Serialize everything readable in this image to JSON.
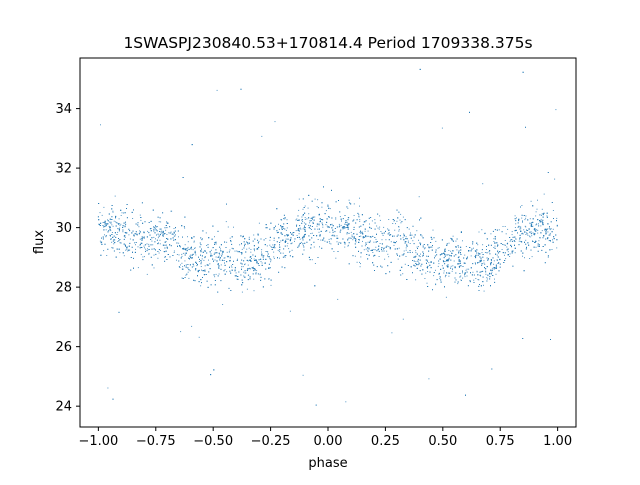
{
  "chart_data": {
    "type": "scatter",
    "title": "1SWASPJ230840.53+170814.4 Period 1709338.375s",
    "xlabel": "phase",
    "ylabel": "flux",
    "xlim": [
      -1.08,
      1.08
    ],
    "ylim": [
      23.3,
      35.7
    ],
    "x_ticks": [
      -1.0,
      -0.75,
      -0.5,
      -0.25,
      0.0,
      0.25,
      0.5,
      0.75,
      1.0
    ],
    "x_tick_labels": [
      "−1.00",
      "−0.75",
      "−0.50",
      "−0.25",
      "0.00",
      "0.25",
      "0.50",
      "0.75",
      "1.00"
    ],
    "y_ticks": [
      24,
      26,
      28,
      30,
      32,
      34
    ],
    "y_tick_labels": [
      "24",
      "26",
      "28",
      "30",
      "32",
      "34"
    ],
    "grid": false,
    "legend": "none",
    "marker_color": "#1f77b4",
    "series": [
      {
        "x": [
          -1.0,
          -0.95,
          -0.9,
          -0.85,
          -0.8,
          -0.75,
          -0.7,
          -0.65,
          -0.6,
          -0.55,
          -0.5,
          -0.45,
          -0.4,
          -0.35,
          -0.3,
          -0.25,
          -0.2,
          -0.15,
          -0.1,
          -0.05,
          0.0,
          0.05,
          0.1,
          0.15,
          0.2,
          0.25,
          0.3,
          0.35,
          0.4,
          0.45,
          0.5,
          0.55,
          0.6,
          0.65,
          0.7,
          0.75,
          0.8,
          0.85,
          0.9,
          0.95,
          1.0
        ],
        "y_median": [
          30.0,
          30.0,
          29.9,
          29.7,
          29.5,
          29.6,
          29.7,
          29.4,
          29.1,
          28.9,
          28.9,
          29.0,
          28.9,
          28.8,
          28.9,
          29.2,
          29.6,
          29.8,
          30.0,
          30.0,
          30.0,
          30.0,
          29.9,
          29.7,
          29.5,
          29.6,
          29.7,
          29.4,
          29.1,
          28.9,
          28.9,
          29.0,
          28.9,
          28.8,
          28.9,
          29.2,
          29.6,
          29.8,
          30.0,
          30.0,
          30.0
        ],
        "y_spread": 1.4,
        "y_range": [
          23.9,
          35.4
        ]
      }
    ]
  }
}
